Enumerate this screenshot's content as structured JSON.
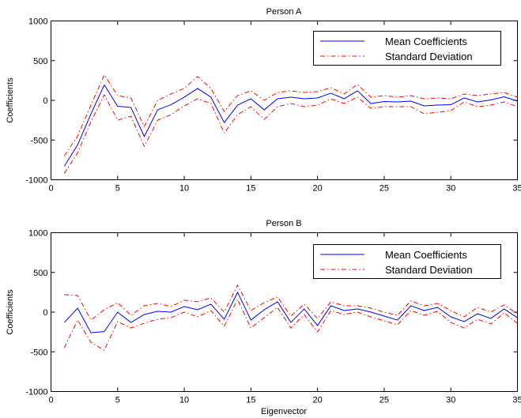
{
  "chart_data": [
    {
      "type": "line",
      "title": "Person A",
      "xlabel": "",
      "ylabel": "Coefficients",
      "xlim": [
        0,
        35
      ],
      "ylim": [
        -1000,
        1000
      ],
      "xticks": [
        0,
        5,
        10,
        15,
        20,
        25,
        30,
        35
      ],
      "yticks": [
        -1000,
        -500,
        0,
        500,
        1000
      ],
      "grid": false,
      "legend_position": "top-right",
      "x": [
        1,
        2,
        3,
        4,
        5,
        6,
        7,
        8,
        9,
        10,
        11,
        12,
        13,
        14,
        15,
        16,
        17,
        18,
        19,
        20,
        21,
        22,
        23,
        24,
        25,
        26,
        27,
        28,
        29,
        30,
        31,
        32,
        33,
        34,
        35
      ],
      "series": [
        {
          "name": "Mean Coefficients",
          "color": "#0000ff",
          "style": "solid",
          "values": [
            -830,
            -560,
            -170,
            195,
            -75,
            -90,
            -455,
            -120,
            -55,
            40,
            150,
            40,
            -280,
            -60,
            20,
            -120,
            20,
            40,
            20,
            30,
            90,
            20,
            120,
            -40,
            -15,
            -20,
            -10,
            -70,
            -60,
            -55,
            30,
            -20,
            5,
            45,
            -10
          ]
        },
        {
          "name": "Standard Deviation",
          "color": "#ff0000",
          "style": "dashdot",
          "values": [
            -700,
            -450,
            -60,
            320,
            60,
            30,
            -330,
            0,
            80,
            150,
            300,
            150,
            -140,
            60,
            120,
            0,
            100,
            120,
            100,
            110,
            160,
            80,
            200,
            40,
            60,
            40,
            60,
            20,
            30,
            20,
            80,
            60,
            80,
            100,
            40
          ]
        },
        {
          "name": "",
          "color": "#ff0000",
          "style": "dashdot",
          "values": [
            -920,
            -660,
            -270,
            70,
            -250,
            -200,
            -580,
            -250,
            -180,
            -70,
            20,
            -40,
            -410,
            -180,
            -80,
            -240,
            -80,
            -40,
            -80,
            -60,
            20,
            -40,
            40,
            -100,
            -80,
            -80,
            -80,
            -170,
            -150,
            -130,
            -20,
            -80,
            -60,
            -20,
            -80
          ]
        }
      ]
    },
    {
      "type": "line",
      "title": "Person B",
      "xlabel": "Eigenvector",
      "ylabel": "Coefficients",
      "xlim": [
        0,
        35
      ],
      "ylim": [
        -1000,
        1000
      ],
      "xticks": [
        0,
        5,
        10,
        15,
        20,
        25,
        30,
        35
      ],
      "yticks": [
        -1000,
        -500,
        0,
        500,
        1000
      ],
      "grid": false,
      "legend_position": "top-right",
      "x": [
        1,
        2,
        3,
        4,
        5,
        6,
        7,
        8,
        9,
        10,
        11,
        12,
        13,
        14,
        15,
        16,
        17,
        18,
        19,
        20,
        21,
        22,
        23,
        24,
        25,
        26,
        27,
        28,
        29,
        30,
        31,
        32,
        33,
        34,
        35
      ],
      "series": [
        {
          "name": "Mean Coefficients",
          "color": "#0000ff",
          "style": "solid",
          "values": [
            -130,
            50,
            -260,
            -245,
            0,
            -130,
            -30,
            10,
            0,
            70,
            30,
            100,
            -90,
            250,
            -100,
            30,
            130,
            -130,
            40,
            -170,
            80,
            20,
            40,
            0,
            -50,
            -100,
            80,
            20,
            60,
            -60,
            -120,
            -20,
            -80,
            40,
            -70
          ]
        },
        {
          "name": "Standard Deviation",
          "color": "#ff0000",
          "style": "dashdot",
          "values": [
            220,
            210,
            -100,
            30,
            120,
            -40,
            80,
            110,
            70,
            150,
            130,
            180,
            0,
            340,
            20,
            120,
            190,
            -50,
            100,
            -80,
            130,
            80,
            80,
            50,
            0,
            -40,
            140,
            80,
            110,
            20,
            -60,
            60,
            0,
            90,
            -20
          ]
        },
        {
          "name": "",
          "color": "#ff0000",
          "style": "dashdot",
          "values": [
            -450,
            -100,
            -380,
            -480,
            -120,
            -200,
            -140,
            -90,
            -70,
            0,
            -60,
            20,
            -180,
            160,
            -200,
            -70,
            60,
            -200,
            -30,
            -250,
            20,
            -30,
            0,
            -60,
            -110,
            -160,
            20,
            -40,
            10,
            -130,
            -200,
            -90,
            -150,
            -10,
            -140
          ]
        }
      ]
    }
  ]
}
